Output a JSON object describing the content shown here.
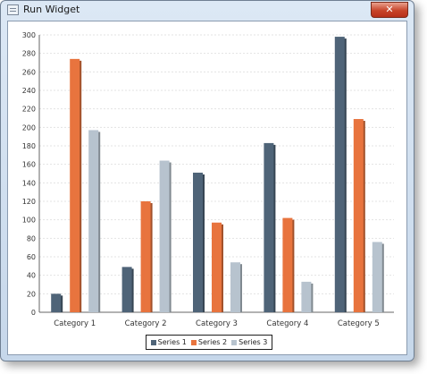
{
  "window": {
    "title": "Run Widget",
    "close_glyph": "✕"
  },
  "icons": {
    "app": "app-window-icon",
    "close": "close-icon"
  },
  "colors": {
    "series1": "#4f6478",
    "series2": "#e8743e",
    "series3": "#b7c3ce"
  },
  "chart_data": {
    "type": "bar",
    "categories": [
      "Category 1",
      "Category 2",
      "Category 3",
      "Category 4",
      "Category 5"
    ],
    "series": [
      {
        "name": "Series 1",
        "values": [
          20,
          49,
          151,
          183,
          298
        ]
      },
      {
        "name": "Series 2",
        "values": [
          274,
          120,
          97,
          102,
          209
        ]
      },
      {
        "name": "Series 3",
        "values": [
          197,
          164,
          54,
          33,
          76
        ]
      }
    ],
    "yticks": [
      "0",
      "20",
      "40",
      "60",
      "80",
      "100",
      "120",
      "140",
      "160",
      "180",
      "200",
      "220",
      "240",
      "260",
      "280",
      "300"
    ],
    "ylim": [
      0,
      300
    ],
    "grid": true,
    "legend_position": "bottom"
  }
}
